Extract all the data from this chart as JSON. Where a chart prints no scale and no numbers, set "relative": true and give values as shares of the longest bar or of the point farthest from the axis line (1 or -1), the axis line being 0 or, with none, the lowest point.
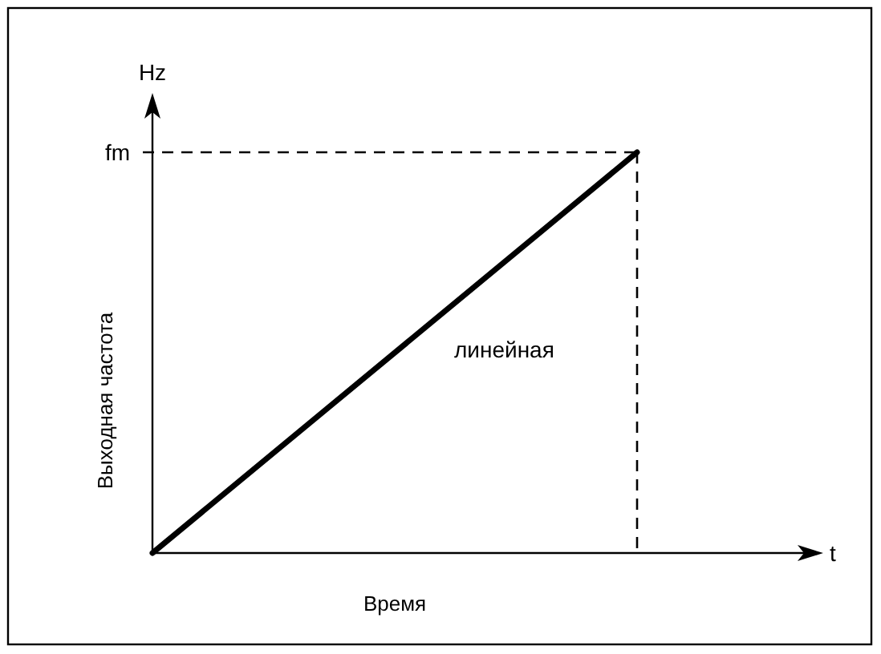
{
  "chart_data": {
    "type": "line",
    "relative": true,
    "xlabel": "Время",
    "ylabel": "Выходная частота",
    "categories": [
      null,
      null
    ],
    "series": [
      {
        "color": "#000000",
        "values": [
          0,
          1
        ]
      }
    ],
    "annotations": [
      "fm",
      "линейная",
      "Hz",
      "t"
    ]
  }
}
